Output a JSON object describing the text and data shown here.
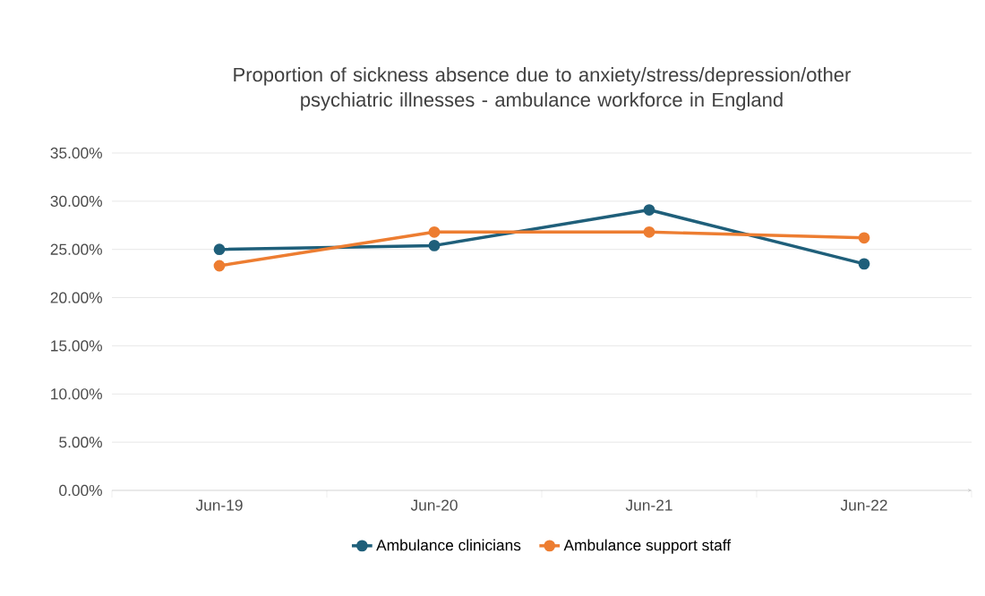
{
  "chart_data": {
    "type": "line",
    "title": "Proportion of sickness absence due to anxiety/stress/depression/other psychiatric illnesses - ambulance workforce in England",
    "categories": [
      "Jun-19",
      "Jun-20",
      "Jun-21",
      "Jun-22"
    ],
    "series": [
      {
        "name": "Ambulance clinicians",
        "color": "#1f5f7a",
        "values": [
          25.0,
          25.4,
          29.1,
          23.5
        ]
      },
      {
        "name": "Ambulance support staff",
        "color": "#ed7d31",
        "values": [
          23.3,
          26.8,
          26.8,
          26.2
        ]
      }
    ],
    "ylim": [
      0,
      35
    ],
    "yticks": [
      {
        "value": 0,
        "label": "0.00%"
      },
      {
        "value": 5,
        "label": "5.00%"
      },
      {
        "value": 10,
        "label": "10.00%"
      },
      {
        "value": 15,
        "label": "15.00%"
      },
      {
        "value": 20,
        "label": "20.00%"
      },
      {
        "value": 25,
        "label": "25.00%"
      },
      {
        "value": 30,
        "label": "30.00%"
      },
      {
        "value": 35,
        "label": "35.00%"
      }
    ],
    "grid": "y",
    "legend": "bottom",
    "marker": "circle"
  }
}
